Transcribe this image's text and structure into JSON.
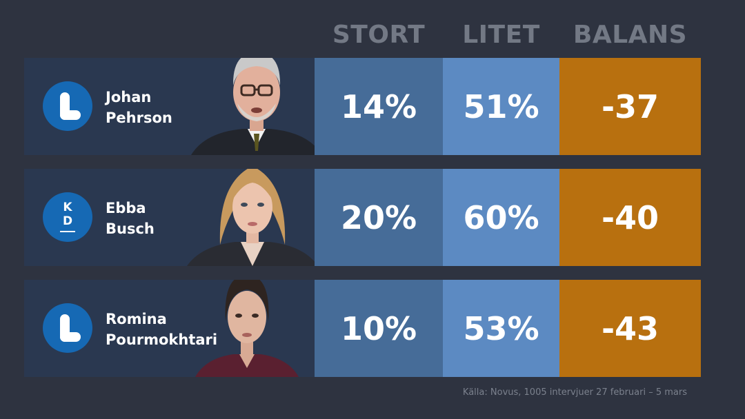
{
  "columns": {
    "stort": "STORT",
    "litet": "LITET",
    "balans": "BALANS"
  },
  "rows": [
    {
      "first_name": "Johan",
      "last_name": "Pehrson",
      "party_logo": "liberal-L-logo",
      "stort": "14%",
      "litet": "51%",
      "balans": "-37"
    },
    {
      "first_name": "Ebba",
      "last_name": "Busch",
      "party_logo": "kd-logo",
      "logo_text_1": "K",
      "logo_text_2": "D",
      "stort": "20%",
      "litet": "60%",
      "balans": "-40"
    },
    {
      "first_name": "Romina",
      "last_name": "Pourmokhtari",
      "party_logo": "liberal-L-logo",
      "stort": "10%",
      "litet": "53%",
      "balans": "-43"
    }
  ],
  "source": "Källa: Novus, 1005 intervjuer 27 februari – 5 mars",
  "colors": {
    "background": "#2e3340",
    "name_cell": "#2a3850",
    "stort": "#466c98",
    "litet": "#5c8ac2",
    "balans": "#b8700f",
    "logo": "#1669b4"
  },
  "chart_data": {
    "type": "table",
    "categories": [
      "Johan Pehrson",
      "Ebba Busch",
      "Romina Pourmokhtari"
    ],
    "series": [
      {
        "name": "STORT",
        "values": [
          14,
          20,
          10
        ]
      },
      {
        "name": "LITET",
        "values": [
          51,
          60,
          53
        ]
      },
      {
        "name": "BALANS",
        "values": [
          -37,
          -40,
          -43
        ]
      }
    ]
  }
}
